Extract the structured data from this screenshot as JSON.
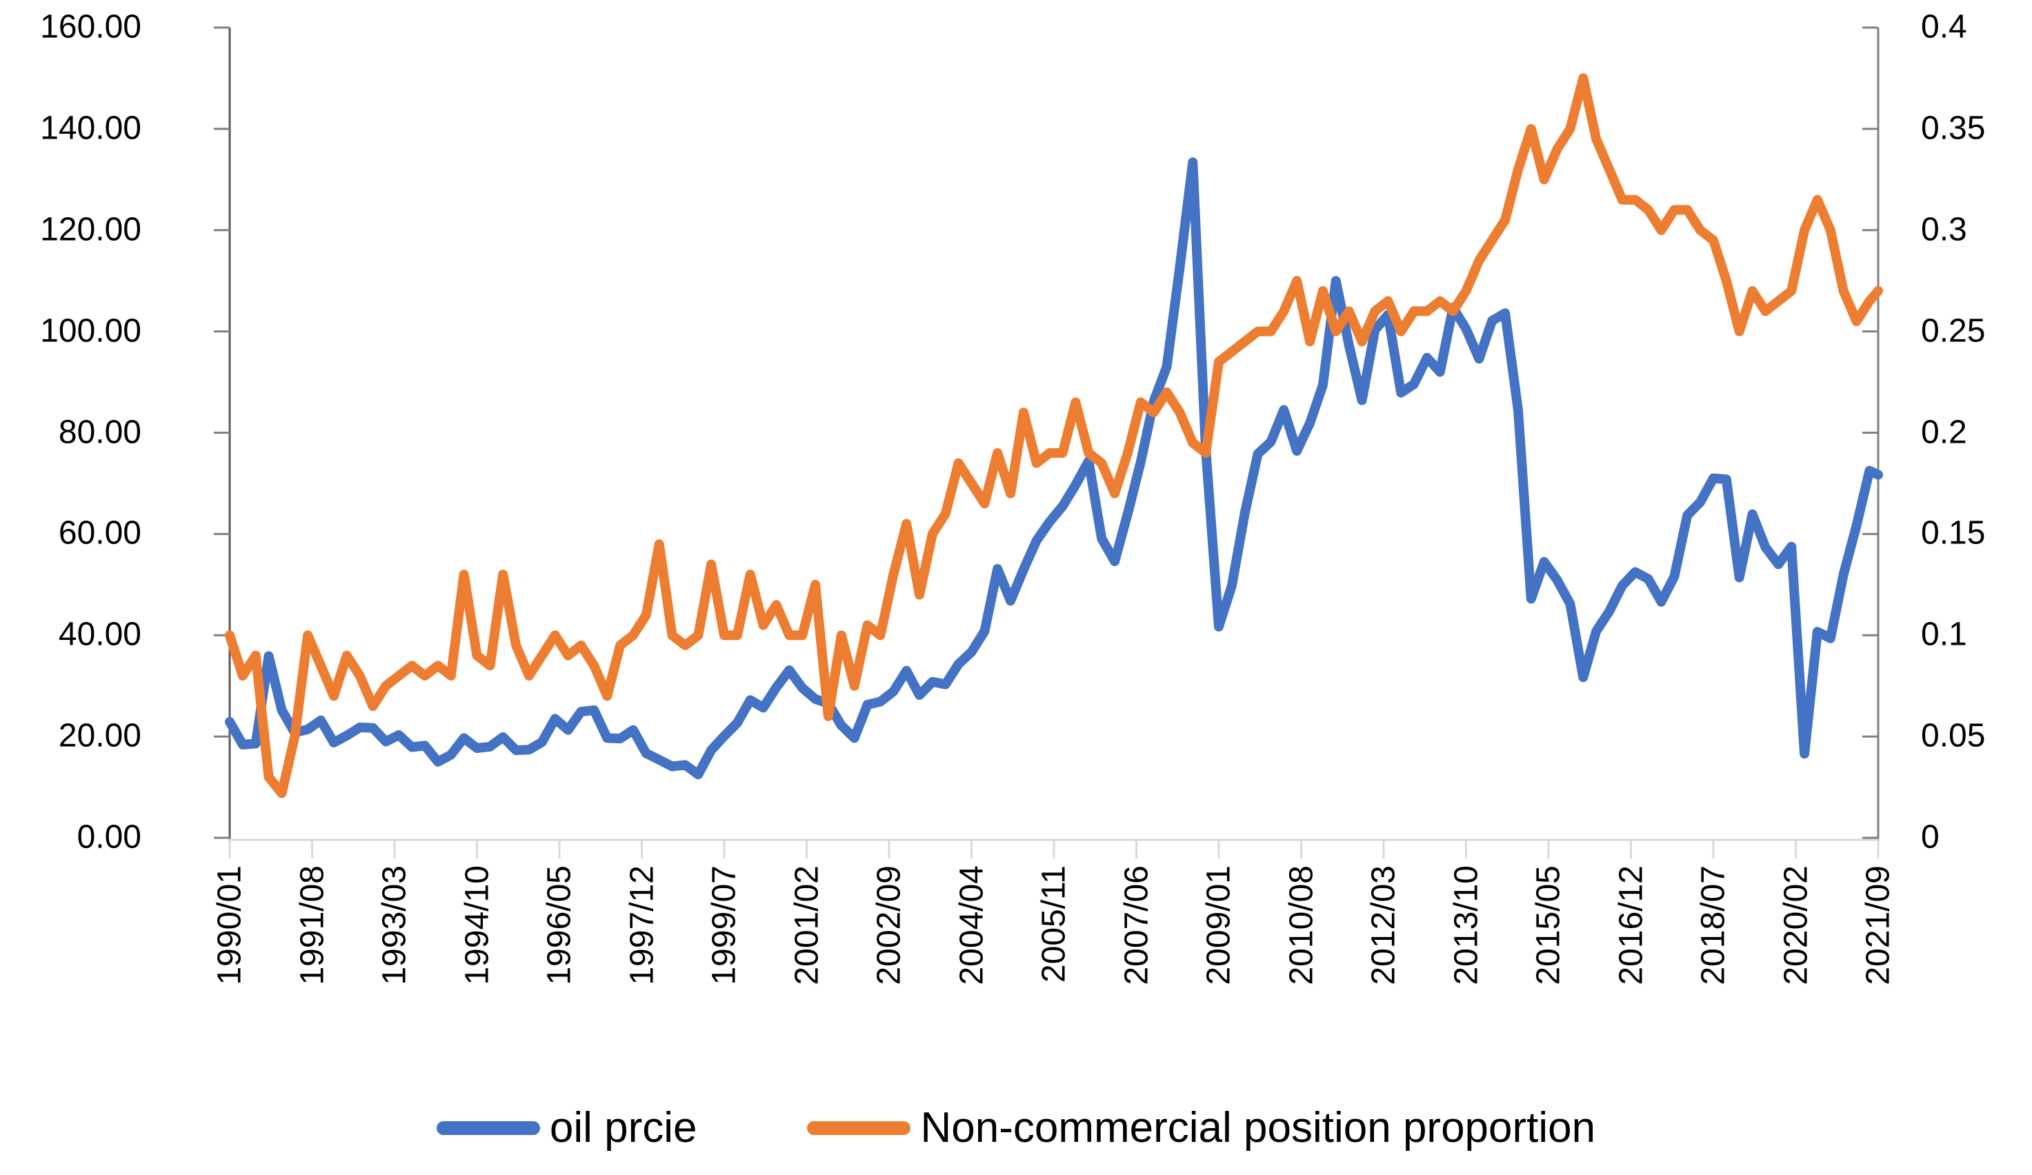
{
  "chart_data": {
    "type": "line",
    "title": "",
    "x": [
      "1990/01",
      "1990/04",
      "1990/07",
      "1990/10",
      "1991/01",
      "1991/04",
      "1991/07",
      "1991/10",
      "1992/01",
      "1992/04",
      "1992/07",
      "1992/10",
      "1993/01",
      "1993/04",
      "1993/07",
      "1993/10",
      "1994/01",
      "1994/04",
      "1994/07",
      "1994/10",
      "1995/01",
      "1995/04",
      "1995/07",
      "1995/10",
      "1996/01",
      "1996/04",
      "1996/07",
      "1996/10",
      "1997/01",
      "1997/04",
      "1997/07",
      "1997/10",
      "1998/01",
      "1998/04",
      "1998/07",
      "1998/10",
      "1999/01",
      "1999/04",
      "1999/07",
      "1999/10",
      "2000/01",
      "2000/04",
      "2000/07",
      "2000/10",
      "2001/01",
      "2001/04",
      "2001/07",
      "2001/10",
      "2002/01",
      "2002/04",
      "2002/07",
      "2002/10",
      "2003/01",
      "2003/04",
      "2003/07",
      "2003/10",
      "2004/01",
      "2004/04",
      "2004/07",
      "2004/10",
      "2005/01",
      "2005/04",
      "2005/07",
      "2005/10",
      "2006/01",
      "2006/04",
      "2006/07",
      "2006/10",
      "2007/01",
      "2007/04",
      "2007/07",
      "2007/10",
      "2008/01",
      "2008/04",
      "2008/07",
      "2008/10",
      "2009/01",
      "2009/04",
      "2009/07",
      "2009/10",
      "2010/01",
      "2010/04",
      "2010/07",
      "2010/10",
      "2011/01",
      "2011/04",
      "2011/07",
      "2011/10",
      "2012/01",
      "2012/04",
      "2012/07",
      "2012/10",
      "2013/01",
      "2013/04",
      "2013/07",
      "2013/10",
      "2014/01",
      "2014/04",
      "2014/07",
      "2014/10",
      "2015/01",
      "2015/04",
      "2015/07",
      "2015/10",
      "2016/01",
      "2016/04",
      "2016/07",
      "2016/10",
      "2017/01",
      "2017/04",
      "2017/07",
      "2017/10",
      "2018/01",
      "2018/04",
      "2018/07",
      "2018/10",
      "2019/01",
      "2019/04",
      "2019/07",
      "2019/10",
      "2020/01",
      "2020/04",
      "2020/07",
      "2020/10",
      "2021/01",
      "2021/04",
      "2021/07",
      "2021/09"
    ],
    "series": [
      {
        "name": "oil prcie",
        "axis": "left",
        "color": "#4472C4",
        "values": [
          22.9,
          18.4,
          18.6,
          35.9,
          25.2,
          20.8,
          21.4,
          23.2,
          18.8,
          20.2,
          21.8,
          21.7,
          19.0,
          20.3,
          17.9,
          18.2,
          15.0,
          16.4,
          19.7,
          17.7,
          18.0,
          19.9,
          17.3,
          17.4,
          18.9,
          23.5,
          21.3,
          24.9,
          25.2,
          19.7,
          19.6,
          21.3,
          16.7,
          15.4,
          14.1,
          14.4,
          12.5,
          17.3,
          20.1,
          22.7,
          27.2,
          25.7,
          29.7,
          33.1,
          29.6,
          27.4,
          26.5,
          22.2,
          19.7,
          26.3,
          26.9,
          28.9,
          33.0,
          28.2,
          30.8,
          30.3,
          34.3,
          36.7,
          40.8,
          53.1,
          46.8,
          53.0,
          58.7,
          62.4,
          65.5,
          69.7,
          74.4,
          59.1,
          54.6,
          64.0,
          74.2,
          86.2,
          93.0,
          112.6,
          133.4,
          76.7,
          41.7,
          49.8,
          64.1,
          75.8,
          78.2,
          84.5,
          76.4,
          81.9,
          89.4,
          110.0,
          97.3,
          86.4,
          100.3,
          103.3,
          87.9,
          89.6,
          94.8,
          92.0,
          104.7,
          100.5,
          94.6,
          102.1,
          103.6,
          84.4,
          47.2,
          54.5,
          50.9,
          46.2,
          31.7,
          40.8,
          44.7,
          49.8,
          52.5,
          51.1,
          46.6,
          51.6,
          63.7,
          66.3,
          71.0,
          70.8,
          51.4,
          63.9,
          57.4,
          54.0,
          57.5,
          16.6,
          40.7,
          39.4,
          52.0,
          61.7,
          72.5,
          71.7
        ]
      },
      {
        "name": "Non-commercial position proportion",
        "axis": "right",
        "color": "#ED7D31",
        "values": [
          0.1,
          0.08,
          0.09,
          0.03,
          0.022,
          0.05,
          0.1,
          0.085,
          0.07,
          0.09,
          0.08,
          0.065,
          0.075,
          0.08,
          0.085,
          0.08,
          0.085,
          0.08,
          0.13,
          0.09,
          0.085,
          0.13,
          0.095,
          0.08,
          0.09,
          0.1,
          0.09,
          0.095,
          0.085,
          0.07,
          0.095,
          0.1,
          0.11,
          0.145,
          0.1,
          0.095,
          0.1,
          0.135,
          0.1,
          0.1,
          0.13,
          0.105,
          0.115,
          0.1,
          0.1,
          0.125,
          0.06,
          0.1,
          0.075,
          0.105,
          0.1,
          0.13,
          0.155,
          0.12,
          0.15,
          0.16,
          0.185,
          0.175,
          0.165,
          0.19,
          0.17,
          0.21,
          0.185,
          0.19,
          0.19,
          0.215,
          0.19,
          0.185,
          0.17,
          0.19,
          0.215,
          0.21,
          0.22,
          0.21,
          0.195,
          0.19,
          0.235,
          0.24,
          0.245,
          0.25,
          0.25,
          0.26,
          0.275,
          0.245,
          0.27,
          0.25,
          0.26,
          0.245,
          0.26,
          0.265,
          0.25,
          0.26,
          0.26,
          0.265,
          0.26,
          0.27,
          0.285,
          0.295,
          0.305,
          0.33,
          0.35,
          0.325,
          0.34,
          0.35,
          0.375,
          0.345,
          0.33,
          0.315,
          0.315,
          0.31,
          0.3,
          0.31,
          0.31,
          0.3,
          0.295,
          0.275,
          0.25,
          0.27,
          0.26,
          0.265,
          0.27,
          0.3,
          0.315,
          0.3,
          0.27,
          0.255,
          0.265,
          0.27
        ]
      }
    ],
    "left_axis": {
      "min": 0,
      "max": 160,
      "tick_step": 20,
      "tick_labels": [
        "0.00",
        "20.00",
        "40.00",
        "60.00",
        "80.00",
        "100.00",
        "120.00",
        "140.00",
        "160.00"
      ]
    },
    "right_axis": {
      "min": 0,
      "max": 0.4,
      "tick_step": 0.05,
      "tick_labels": [
        "0",
        "0.05",
        "0.1",
        "0.15",
        "0.2",
        "0.25",
        "0.3",
        "0.35",
        "0.4"
      ]
    },
    "x_tick_labels": [
      "1990/01",
      "1991/08",
      "1993/03",
      "1994/10",
      "1996/05",
      "1997/12",
      "1999/07",
      "2001/02",
      "2002/09",
      "2004/04",
      "2005/11",
      "2007/06",
      "2009/01",
      "2010/08",
      "2012/03",
      "2013/10",
      "2015/05",
      "2016/12",
      "2018/07",
      "2020/02",
      "2021/09"
    ],
    "x_tick_interval_months": 19,
    "grid": false,
    "legend_position": "bottom"
  },
  "legend": {
    "items": [
      {
        "label": "oil prcie",
        "color": "#4472C4"
      },
      {
        "label": "Non-commercial position proportion",
        "color": "#ED7D31"
      }
    ]
  },
  "colors": {
    "series_oil": "#4472C4",
    "series_proportion": "#ED7D31",
    "axis_left": "#595959",
    "axis_right": "#808080",
    "axis_bottom": "#D9D9D9",
    "tick_text": "#000000",
    "background": "#FFFFFF"
  }
}
